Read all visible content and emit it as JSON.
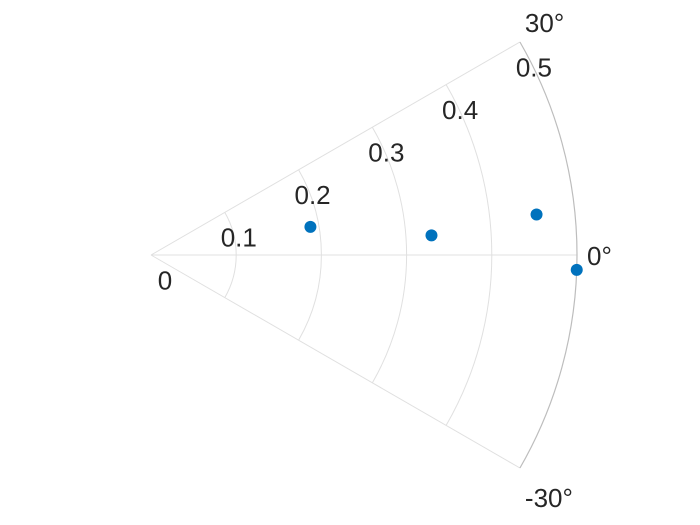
{
  "chart_data": {
    "type": "scatter",
    "coordinate_system": "polar",
    "title": "",
    "theta_limits_deg": [
      -30,
      30
    ],
    "r_limits": [
      0,
      0.5
    ],
    "r_ticks": [
      0,
      0.1,
      0.2,
      0.3,
      0.4,
      0.5
    ],
    "r_tick_labels": [
      "0",
      "0.1",
      "0.2",
      "0.3",
      "0.4",
      "0.5"
    ],
    "theta_ticks_deg": [
      -30,
      0,
      30
    ],
    "theta_tick_labels": [
      "-30°",
      "0°",
      "30°"
    ],
    "grid": true,
    "marker_color": "#0072BD",
    "series": [
      {
        "points": [
          {
            "theta_deg": 10,
            "r": 0.19
          },
          {
            "theta_deg": 4,
            "r": 0.33
          },
          {
            "theta_deg": 6,
            "r": 0.455
          },
          {
            "theta_deg": -2,
            "r": 0.5
          }
        ]
      }
    ]
  }
}
